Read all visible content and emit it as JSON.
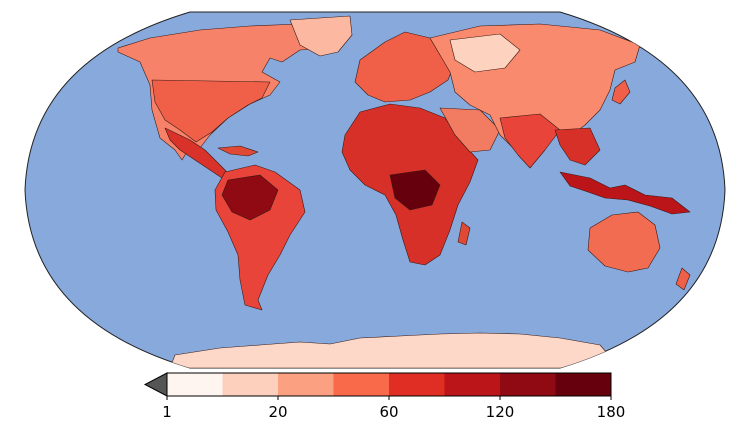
{
  "colorbar": {
    "colors": [
      "#fff5f0",
      "#fdd0bd",
      "#fca082",
      "#f86a4a",
      "#e02e24",
      "#bb1419",
      "#8f0a12",
      "#67000d"
    ],
    "under_color": "#555555",
    "ticks": [
      {
        "value": 1,
        "label": "1"
      },
      {
        "value": 20,
        "label": "20"
      },
      {
        "value": 60,
        "label": "60"
      },
      {
        "value": 120,
        "label": "120"
      },
      {
        "value": 180,
        "label": "180"
      }
    ]
  },
  "ocean_color": "#88a9dc"
}
